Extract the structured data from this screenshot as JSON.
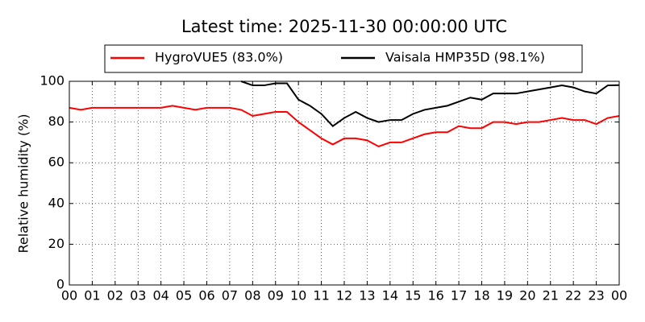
{
  "chart_data": {
    "type": "line",
    "title": "Latest time: 2025-11-30 00:00:00 UTC",
    "y_label": "Relative humidity (%)",
    "x": [
      0,
      0.5,
      1,
      1.5,
      2,
      2.5,
      3,
      3.5,
      4,
      4.5,
      5,
      5.5,
      6,
      6.5,
      7,
      7.5,
      8,
      8.5,
      9,
      9.5,
      10,
      10.5,
      11,
      11.5,
      12,
      12.5,
      13,
      13.5,
      14,
      14.5,
      15,
      15.5,
      16,
      16.5,
      17,
      17.5,
      18,
      18.5,
      19,
      19.5,
      20,
      20.5,
      21,
      21.5,
      22,
      22.5,
      23,
      23.5,
      24
    ],
    "series": [
      {
        "name": "HygroVUE5 (83.0%)",
        "color": "#ff0000",
        "values": [
          87,
          86,
          87,
          87,
          87,
          87,
          87,
          87,
          87,
          88,
          87,
          86,
          87,
          87,
          87,
          86,
          83,
          84,
          85,
          85,
          80,
          76,
          72,
          69,
          72,
          72,
          71,
          68,
          70,
          70,
          72,
          74,
          75,
          75,
          78,
          77,
          77,
          80,
          80,
          79,
          80,
          80,
          81,
          82,
          81,
          81,
          79,
          82,
          83
        ]
      },
      {
        "name": "Vaisala HMP35D (98.1%)",
        "color": "#000000",
        "values": [
          null,
          null,
          null,
          null,
          null,
          null,
          null,
          null,
          null,
          null,
          null,
          null,
          null,
          null,
          null,
          100,
          98,
          98,
          99,
          99,
          91,
          88,
          84,
          78,
          82,
          85,
          82,
          80,
          81,
          81,
          84,
          86,
          87,
          88,
          90,
          92,
          91,
          94,
          94,
          94,
          95,
          96,
          97,
          98,
          97,
          95,
          94,
          98,
          98.1
        ]
      }
    ],
    "xlim": [
      0,
      24
    ],
    "xticks": [
      {
        "value": 0,
        "label": "00"
      },
      {
        "value": 1,
        "label": "01"
      },
      {
        "value": 2,
        "label": "02"
      },
      {
        "value": 3,
        "label": "03"
      },
      {
        "value": 4,
        "label": "04"
      },
      {
        "value": 5,
        "label": "05"
      },
      {
        "value": 6,
        "label": "06"
      },
      {
        "value": 7,
        "label": "07"
      },
      {
        "value": 8,
        "label": "08"
      },
      {
        "value": 9,
        "label": "09"
      },
      {
        "value": 10,
        "label": "10"
      },
      {
        "value": 11,
        "label": "11"
      },
      {
        "value": 12,
        "label": "12"
      },
      {
        "value": 13,
        "label": "13"
      },
      {
        "value": 14,
        "label": "14"
      },
      {
        "value": 15,
        "label": "15"
      },
      {
        "value": 16,
        "label": "16"
      },
      {
        "value": 17,
        "label": "17"
      },
      {
        "value": 18,
        "label": "18"
      },
      {
        "value": 19,
        "label": "19"
      },
      {
        "value": 20,
        "label": "20"
      },
      {
        "value": 21,
        "label": "21"
      },
      {
        "value": 22,
        "label": "22"
      },
      {
        "value": 23,
        "label": "23"
      },
      {
        "value": 24,
        "label": "00"
      }
    ],
    "ylim": [
      0,
      100
    ],
    "yticks": [
      0,
      20,
      40,
      60,
      80,
      100
    ],
    "grid": true
  }
}
